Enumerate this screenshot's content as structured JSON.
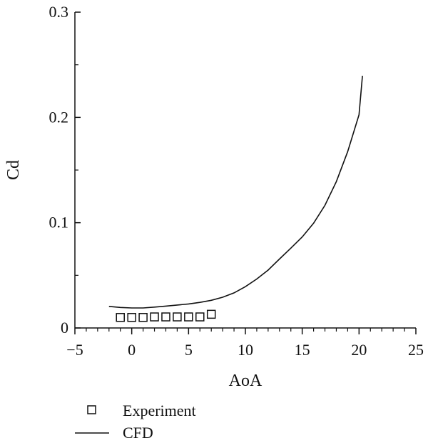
{
  "chart_data": {
    "type": "line",
    "xlabel": "AoA",
    "ylabel": "Cd",
    "xlim": [
      -5,
      25
    ],
    "ylim": [
      0,
      0.3
    ],
    "x_ticks": [
      -5,
      0,
      5,
      10,
      15,
      20,
      25
    ],
    "x_tick_labels": [
      "−5",
      "0",
      "5",
      "10",
      "15",
      "20",
      "25"
    ],
    "y_ticks": [
      0,
      0.1,
      0.2,
      0.3
    ],
    "y_tick_labels": [
      "0",
      "0.1",
      "0.2",
      "0.3"
    ],
    "grid": false,
    "legend_position": "bottom-left",
    "series": [
      {
        "name": "Experiment",
        "marker": "open-square",
        "line": false,
        "color": "#111111",
        "x": [
          -1,
          0,
          1,
          2,
          3,
          4,
          5,
          6,
          7
        ],
        "y": [
          0.01,
          0.01,
          0.01,
          0.0105,
          0.0105,
          0.0105,
          0.0105,
          0.0105,
          0.013
        ]
      },
      {
        "name": "CFD",
        "marker": "none",
        "line": true,
        "color": "#111111",
        "x": [
          -2,
          -1,
          0,
          1,
          2,
          3,
          4,
          5,
          6,
          7,
          8,
          9,
          10,
          11,
          12,
          13,
          14,
          15,
          16,
          17,
          18,
          19,
          20,
          20.3
        ],
        "y": [
          0.0205,
          0.0195,
          0.019,
          0.019,
          0.0198,
          0.0208,
          0.0218,
          0.0228,
          0.0243,
          0.0263,
          0.0292,
          0.0333,
          0.0392,
          0.0465,
          0.055,
          0.0655,
          0.0758,
          0.0865,
          0.0995,
          0.1165,
          0.139,
          0.1675,
          0.2025,
          0.2395
        ]
      }
    ]
  }
}
